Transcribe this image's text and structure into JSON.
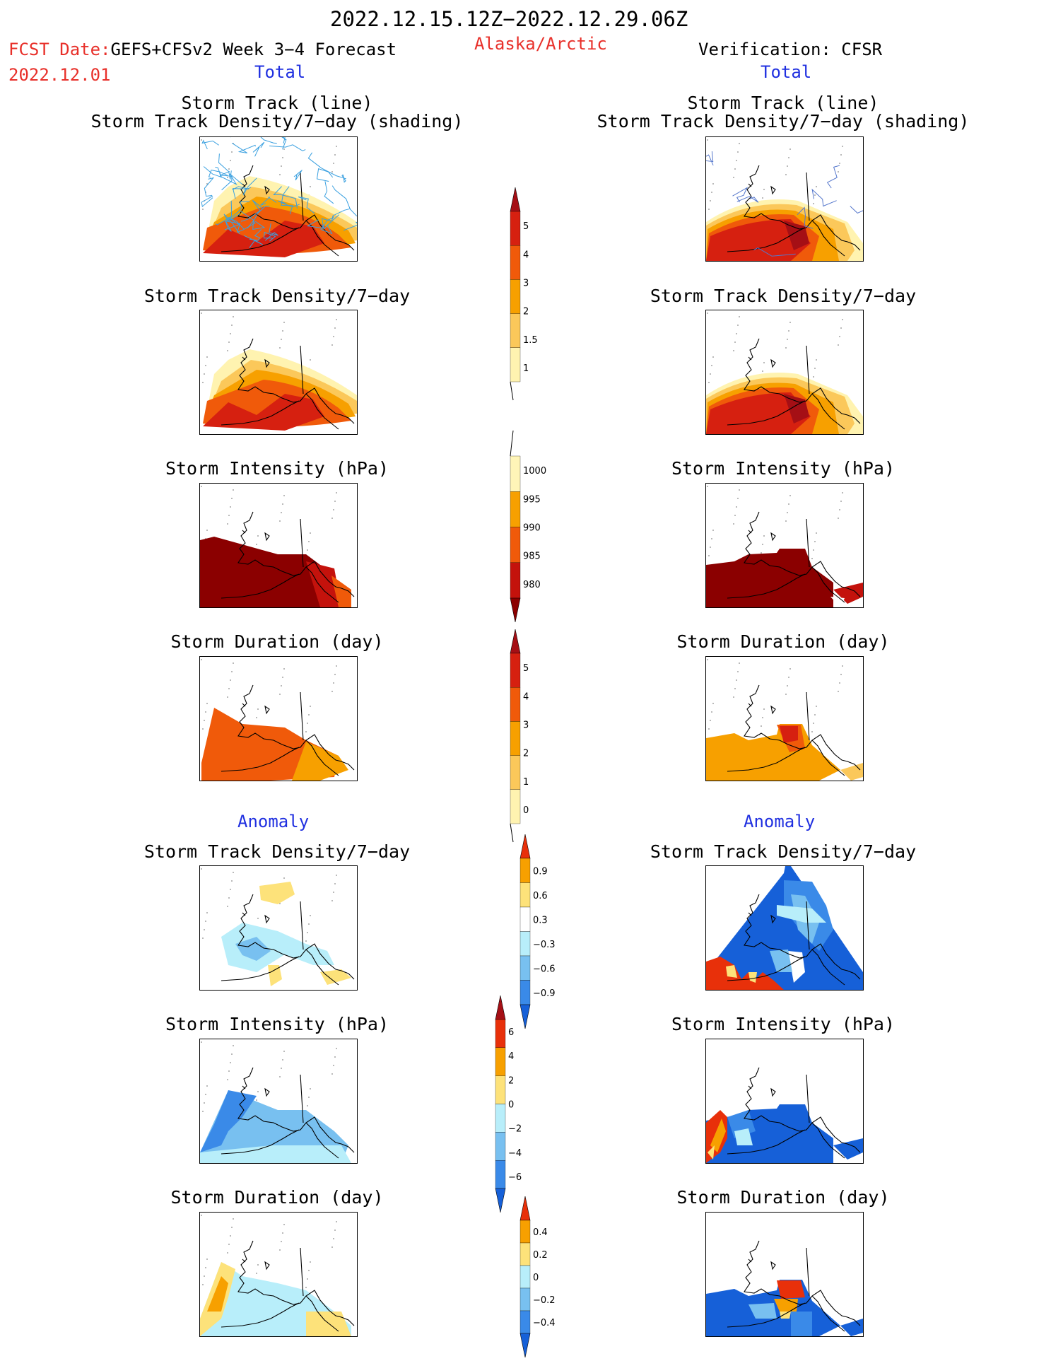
{
  "header": {
    "period": "2022.12.15.12Z−2022.12.29.06Z",
    "fcst_label": "FCST Date:",
    "fcst_date": "2022.12.01",
    "model": "GEFS+CFSv2 Week 3−4 Forecast",
    "region": "Alaska/Arctic",
    "verification": "Verification: CFSR"
  },
  "columns": {
    "left_section_total": "Total",
    "right_section_total": "Total",
    "left_section_anomaly": "Anomaly",
    "right_section_anomaly": "Anomaly"
  },
  "panels": {
    "l1_title_a": "Storm Track (line)",
    "l1_title_b": "Storm Track Density/7−day (shading)",
    "r1_title_a": "Storm Track (line)",
    "r1_title_b": "Storm Track Density/7−day (shading)",
    "l2_title": "Storm Track Density/7−day",
    "r2_title": "Storm Track Density/7−day",
    "l3_title": "Storm Intensity (hPa)",
    "r3_title": "Storm Intensity (hPa)",
    "l4_title": "Storm Duration (day)",
    "r4_title": "Storm Duration (day)",
    "l5_title": "Storm Track Density/7−day",
    "r5_title": "Storm Track Density/7−day",
    "l6_title": "Storm Intensity (hPa)",
    "r6_title": "Storm Intensity (hPa)",
    "l7_title": "Storm Duration (day)",
    "r7_title": "Storm Duration (day)"
  },
  "colorbars": {
    "density": {
      "labels": [
        "5",
        "4",
        "3",
        "2",
        "1.5",
        "1"
      ],
      "colors": [
        "#a50f15",
        "#d62010",
        "#f05a0a",
        "#f7a000",
        "#fbc85a",
        "#fff3b0"
      ]
    },
    "intensity": {
      "labels": [
        "1000",
        "995",
        "990",
        "985",
        "980"
      ],
      "colors": [
        "#fff5b8",
        "#f7a000",
        "#f05a0a",
        "#c4120c",
        "#8b0000"
      ]
    },
    "duration": {
      "labels": [
        "5",
        "4",
        "3",
        "2",
        "1",
        "0"
      ],
      "colors": [
        "#a50f15",
        "#d62010",
        "#f05a0a",
        "#f7a000",
        "#fbc85a",
        "#fff3b0"
      ]
    },
    "density_anom": {
      "labels": [
        "0.9",
        "0.6",
        "0.3",
        "−0.3",
        "−0.6",
        "−0.9"
      ],
      "colors": [
        "#e8300a",
        "#f7a000",
        "#fde27a",
        "#ffffff",
        "#b8eefa",
        "#78c0f0",
        "#3a8ae8",
        "#1660d8"
      ]
    },
    "intensity_anom": {
      "labels": [
        "6",
        "4",
        "2",
        "0",
        "−2",
        "−4",
        "−6"
      ],
      "colors": [
        "#a50f15",
        "#e8300a",
        "#f7a000",
        "#fde27a",
        "#b8eefa",
        "#78c0f0",
        "#3a8ae8",
        "#1660d8"
      ]
    },
    "duration_anom": {
      "labels": [
        "0.4",
        "0.2",
        "0",
        "−0.2",
        "−0.4"
      ],
      "colors": [
        "#e8300a",
        "#f7a000",
        "#fde27a",
        "#b8eefa",
        "#78c0f0",
        "#3a8ae8",
        "#1660d8"
      ]
    }
  },
  "colors": {
    "title_red": "#e8302a",
    "section_blue": "#2030e0",
    "track_line": "#3aa0e0"
  }
}
